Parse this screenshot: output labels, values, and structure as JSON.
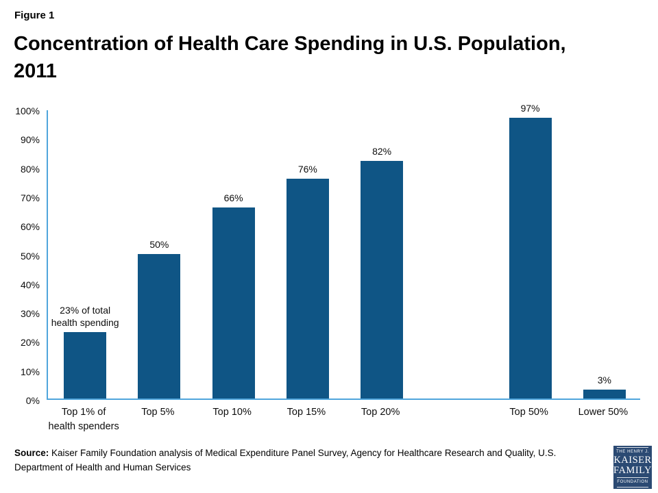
{
  "figure_label": "Figure 1",
  "title_lines": [
    "Concentration of Health Care Spending in U.S. Population,",
    "2011"
  ],
  "chart_data": {
    "type": "bar",
    "title": "Concentration of Health Care Spending in U.S. Population, 2011",
    "categories": [
      "Top 1% of\nhealth spenders",
      "Top 5%",
      "Top 10%",
      "Top 15%",
      "Top 20%",
      "Top 50%",
      "Lower 50%"
    ],
    "values": [
      23,
      50,
      66,
      76,
      82,
      97,
      3
    ],
    "value_labels": [
      "23% of total\nhealth spending",
      "50%",
      "66%",
      "76%",
      "82%",
      "97%",
      "3%"
    ],
    "slots": [
      0,
      1,
      2,
      3,
      4,
      6,
      7
    ],
    "total_slots": 8,
    "xlabel": "",
    "ylabel": "",
    "ylim": [
      0,
      100
    ],
    "ytick_labels": [
      "0%",
      "10%",
      "20%",
      "30%",
      "40%",
      "50%",
      "60%",
      "70%",
      "80%",
      "90%",
      "100%"
    ],
    "grid": false,
    "legend": "none",
    "bar_color": "#0F5585",
    "axis_color": "#4FA5DC"
  },
  "source": {
    "label": "Source:",
    "text": "Kaiser Family Foundation analysis of Medical Expenditure Panel Survey, Agency for Healthcare Research and Quality, U.S. Department of Health and Human Services"
  },
  "logo": {
    "top_text": "THE HENRY J.",
    "name_line1": "KAISER",
    "name_line2": "FAMILY",
    "bottom_text": "FOUNDATION",
    "background": "#2B4A73"
  }
}
